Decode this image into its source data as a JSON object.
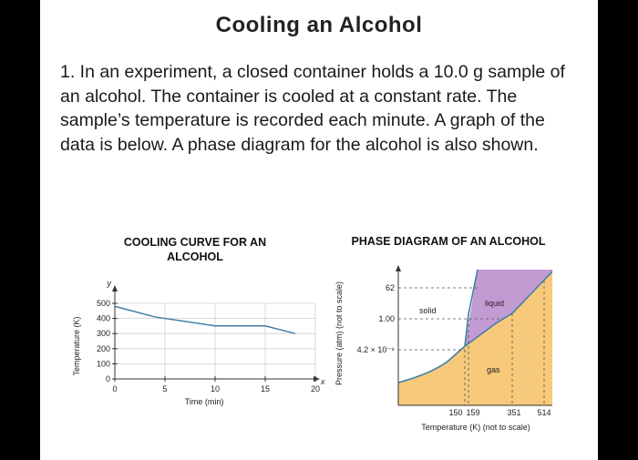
{
  "document": {
    "title": "Cooling an Alcohol",
    "question": "1. In an experiment, a closed container holds a 10.0 g sample of an alcohol. The container is cooled at a constant rate. The sample’s temperature is recorded each minute. A graph of the data is below. A phase diagram for the alcohol is also shown."
  },
  "chart_data": [
    {
      "type": "line",
      "title": "COOLING CURVE FOR AN ALCOHOL",
      "xlabel": "Time (min)",
      "ylabel": "Temperature (K)",
      "x_axis_letter": "x",
      "y_axis_letter": "y",
      "x_ticks": [
        0,
        5,
        10,
        15,
        20
      ],
      "y_ticks": [
        0,
        100,
        200,
        300,
        400,
        500
      ],
      "xlim": [
        0,
        20
      ],
      "ylim": [
        0,
        500
      ],
      "grid": true,
      "series": [
        {
          "x": [
            0,
            4,
            10,
            15,
            18
          ],
          "y": [
            480,
            410,
            351,
            351,
            300
          ]
        }
      ],
      "color": "#3f7fa8"
    },
    {
      "type": "area",
      "title": "PHASE DIAGRAM OF AN ALCOHOL",
      "xlabel": "Temperature (K) (not to scale)",
      "ylabel": "Pressure (atm) (not to scale)",
      "x_ticks": [
        "150",
        "159",
        "351",
        "514"
      ],
      "y_ticks": [
        "62",
        "1.00",
        "4.2 × 10⁻⁹"
      ],
      "regions": [
        {
          "label": "solid",
          "color": "#ffffff"
        },
        {
          "label": "liquid",
          "color": "#c39bd3"
        },
        {
          "label": "gas",
          "color": "#f6c97b"
        }
      ]
    }
  ]
}
